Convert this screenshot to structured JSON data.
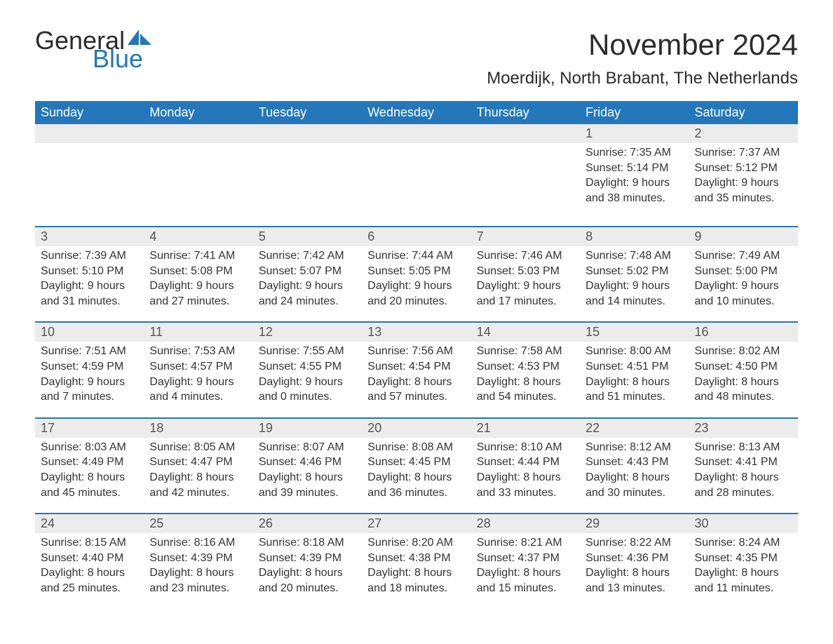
{
  "logo": {
    "text1": "General",
    "text2": "Blue",
    "sail_color": "#2477bb"
  },
  "title": "November 2024",
  "location": "Moerdijk, North Brabant, The Netherlands",
  "colors": {
    "header_bg": "#2477bb",
    "header_text": "#ffffff",
    "date_row_bg": "#ececec",
    "date_row_border": "#2477bb",
    "body_text": "#333333",
    "date_text": "#555555",
    "background": "#ffffff"
  },
  "typography": {
    "title_fontsize": 42,
    "location_fontsize": 24,
    "dow_fontsize": 18,
    "date_fontsize": 18,
    "info_fontsize": 16,
    "font_family": "Arial"
  },
  "layout": {
    "columns": 7,
    "weeks": 5
  },
  "days_of_week": [
    "Sunday",
    "Monday",
    "Tuesday",
    "Wednesday",
    "Thursday",
    "Friday",
    "Saturday"
  ],
  "weeks": [
    [
      null,
      null,
      null,
      null,
      null,
      {
        "date": "1",
        "sunrise": "Sunrise: 7:35 AM",
        "sunset": "Sunset: 5:14 PM",
        "daylight": "Daylight: 9 hours and 38 minutes."
      },
      {
        "date": "2",
        "sunrise": "Sunrise: 7:37 AM",
        "sunset": "Sunset: 5:12 PM",
        "daylight": "Daylight: 9 hours and 35 minutes."
      }
    ],
    [
      {
        "date": "3",
        "sunrise": "Sunrise: 7:39 AM",
        "sunset": "Sunset: 5:10 PM",
        "daylight": "Daylight: 9 hours and 31 minutes."
      },
      {
        "date": "4",
        "sunrise": "Sunrise: 7:41 AM",
        "sunset": "Sunset: 5:08 PM",
        "daylight": "Daylight: 9 hours and 27 minutes."
      },
      {
        "date": "5",
        "sunrise": "Sunrise: 7:42 AM",
        "sunset": "Sunset: 5:07 PM",
        "daylight": "Daylight: 9 hours and 24 minutes."
      },
      {
        "date": "6",
        "sunrise": "Sunrise: 7:44 AM",
        "sunset": "Sunset: 5:05 PM",
        "daylight": "Daylight: 9 hours and 20 minutes."
      },
      {
        "date": "7",
        "sunrise": "Sunrise: 7:46 AM",
        "sunset": "Sunset: 5:03 PM",
        "daylight": "Daylight: 9 hours and 17 minutes."
      },
      {
        "date": "8",
        "sunrise": "Sunrise: 7:48 AM",
        "sunset": "Sunset: 5:02 PM",
        "daylight": "Daylight: 9 hours and 14 minutes."
      },
      {
        "date": "9",
        "sunrise": "Sunrise: 7:49 AM",
        "sunset": "Sunset: 5:00 PM",
        "daylight": "Daylight: 9 hours and 10 minutes."
      }
    ],
    [
      {
        "date": "10",
        "sunrise": "Sunrise: 7:51 AM",
        "sunset": "Sunset: 4:59 PM",
        "daylight": "Daylight: 9 hours and 7 minutes."
      },
      {
        "date": "11",
        "sunrise": "Sunrise: 7:53 AM",
        "sunset": "Sunset: 4:57 PM",
        "daylight": "Daylight: 9 hours and 4 minutes."
      },
      {
        "date": "12",
        "sunrise": "Sunrise: 7:55 AM",
        "sunset": "Sunset: 4:55 PM",
        "daylight": "Daylight: 9 hours and 0 minutes."
      },
      {
        "date": "13",
        "sunrise": "Sunrise: 7:56 AM",
        "sunset": "Sunset: 4:54 PM",
        "daylight": "Daylight: 8 hours and 57 minutes."
      },
      {
        "date": "14",
        "sunrise": "Sunrise: 7:58 AM",
        "sunset": "Sunset: 4:53 PM",
        "daylight": "Daylight: 8 hours and 54 minutes."
      },
      {
        "date": "15",
        "sunrise": "Sunrise: 8:00 AM",
        "sunset": "Sunset: 4:51 PM",
        "daylight": "Daylight: 8 hours and 51 minutes."
      },
      {
        "date": "16",
        "sunrise": "Sunrise: 8:02 AM",
        "sunset": "Sunset: 4:50 PM",
        "daylight": "Daylight: 8 hours and 48 minutes."
      }
    ],
    [
      {
        "date": "17",
        "sunrise": "Sunrise: 8:03 AM",
        "sunset": "Sunset: 4:49 PM",
        "daylight": "Daylight: 8 hours and 45 minutes."
      },
      {
        "date": "18",
        "sunrise": "Sunrise: 8:05 AM",
        "sunset": "Sunset: 4:47 PM",
        "daylight": "Daylight: 8 hours and 42 minutes."
      },
      {
        "date": "19",
        "sunrise": "Sunrise: 8:07 AM",
        "sunset": "Sunset: 4:46 PM",
        "daylight": "Daylight: 8 hours and 39 minutes."
      },
      {
        "date": "20",
        "sunrise": "Sunrise: 8:08 AM",
        "sunset": "Sunset: 4:45 PM",
        "daylight": "Daylight: 8 hours and 36 minutes."
      },
      {
        "date": "21",
        "sunrise": "Sunrise: 8:10 AM",
        "sunset": "Sunset: 4:44 PM",
        "daylight": "Daylight: 8 hours and 33 minutes."
      },
      {
        "date": "22",
        "sunrise": "Sunrise: 8:12 AM",
        "sunset": "Sunset: 4:43 PM",
        "daylight": "Daylight: 8 hours and 30 minutes."
      },
      {
        "date": "23",
        "sunrise": "Sunrise: 8:13 AM",
        "sunset": "Sunset: 4:41 PM",
        "daylight": "Daylight: 8 hours and 28 minutes."
      }
    ],
    [
      {
        "date": "24",
        "sunrise": "Sunrise: 8:15 AM",
        "sunset": "Sunset: 4:40 PM",
        "daylight": "Daylight: 8 hours and 25 minutes."
      },
      {
        "date": "25",
        "sunrise": "Sunrise: 8:16 AM",
        "sunset": "Sunset: 4:39 PM",
        "daylight": "Daylight: 8 hours and 23 minutes."
      },
      {
        "date": "26",
        "sunrise": "Sunrise: 8:18 AM",
        "sunset": "Sunset: 4:39 PM",
        "daylight": "Daylight: 8 hours and 20 minutes."
      },
      {
        "date": "27",
        "sunrise": "Sunrise: 8:20 AM",
        "sunset": "Sunset: 4:38 PM",
        "daylight": "Daylight: 8 hours and 18 minutes."
      },
      {
        "date": "28",
        "sunrise": "Sunrise: 8:21 AM",
        "sunset": "Sunset: 4:37 PM",
        "daylight": "Daylight: 8 hours and 15 minutes."
      },
      {
        "date": "29",
        "sunrise": "Sunrise: 8:22 AM",
        "sunset": "Sunset: 4:36 PM",
        "daylight": "Daylight: 8 hours and 13 minutes."
      },
      {
        "date": "30",
        "sunrise": "Sunrise: 8:24 AM",
        "sunset": "Sunset: 4:35 PM",
        "daylight": "Daylight: 8 hours and 11 minutes."
      }
    ]
  ]
}
